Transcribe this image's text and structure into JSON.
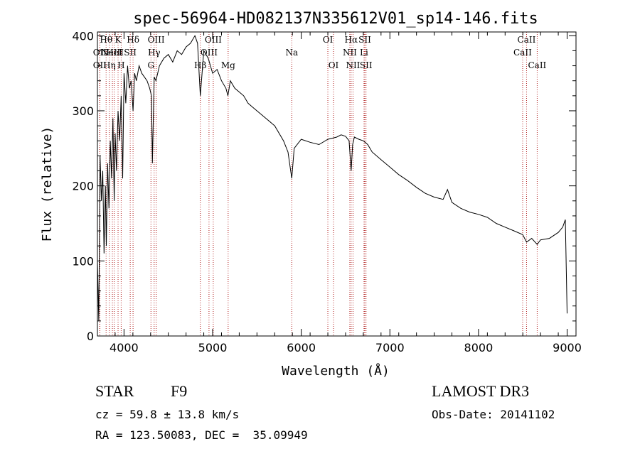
{
  "chart_data": {
    "type": "line",
    "title": "spec-56964-HD082137N335612V01_sp14-146.fits",
    "xlabel": "Wavelength (Å)",
    "ylabel": "Flux (relative)",
    "xlim": [
      3700,
      9100
    ],
    "ylim": [
      0,
      405
    ],
    "x_ticks": [
      4000,
      5000,
      6000,
      7000,
      8000,
      9000
    ],
    "y_ticks": [
      0,
      100,
      200,
      300,
      400
    ],
    "grid": false,
    "line_color": "#000000",
    "marker_line_color": "#b22222",
    "series": [
      {
        "x": [
          3700,
          3715,
          3730,
          3745,
          3760,
          3775,
          3790,
          3800,
          3815,
          3830,
          3845,
          3860,
          3875,
          3889,
          3900,
          3915,
          3933,
          3950,
          3968,
          3985,
          4000,
          4020,
          4040,
          4060,
          4080,
          4102,
          4120,
          4140,
          4170,
          4200,
          4230,
          4260,
          4290,
          4310,
          4320,
          4340,
          4360,
          4400,
          4450,
          4500,
          4550,
          4600,
          4650,
          4700,
          4750,
          4800,
          4830,
          4861,
          4900,
          4950,
          5000,
          5050,
          5100,
          5150,
          5172,
          5200,
          5250,
          5300,
          5350,
          5400,
          5450,
          5500,
          5600,
          5700,
          5800,
          5850,
          5893,
          5920,
          6000,
          6100,
          6200,
          6300,
          6400,
          6450,
          6500,
          6540,
          6563,
          6580,
          6600,
          6650,
          6700,
          6750,
          6800,
          6900,
          7000,
          7100,
          7200,
          7300,
          7400,
          7500,
          7600,
          7650,
          7700,
          7800,
          7900,
          8000,
          8100,
          8200,
          8300,
          8400,
          8498,
          8542,
          8600,
          8662,
          8700,
          8800,
          8900,
          8950,
          8980,
          9000
        ],
        "y": [
          100,
          20,
          240,
          180,
          220,
          110,
          200,
          120,
          230,
          170,
          260,
          210,
          290,
          180,
          270,
          220,
          300,
          260,
          320,
          210,
          350,
          310,
          360,
          330,
          340,
          300,
          350,
          340,
          360,
          350,
          345,
          340,
          330,
          320,
          230,
          345,
          340,
          360,
          370,
          375,
          365,
          380,
          375,
          385,
          390,
          400,
          390,
          320,
          380,
          370,
          350,
          355,
          340,
          330,
          320,
          340,
          330,
          325,
          320,
          310,
          305,
          300,
          290,
          280,
          260,
          245,
          210,
          250,
          262,
          258,
          255,
          262,
          265,
          268,
          266,
          260,
          220,
          255,
          265,
          262,
          260,
          255,
          245,
          235,
          225,
          215,
          207,
          198,
          190,
          185,
          182,
          195,
          178,
          170,
          165,
          162,
          158,
          150,
          145,
          140,
          135,
          125,
          130,
          122,
          128,
          130,
          138,
          145,
          155,
          30
        ]
      }
    ],
    "line_markers": [
      {
        "x": 3727,
        "label": "OII",
        "row": 1
      },
      {
        "x": 3727,
        "label": "OII",
        "row": 2
      },
      {
        "x": 3798,
        "label": "Hθ",
        "row": 0
      },
      {
        "x": 3835,
        "label": "Hη",
        "row": 2
      },
      {
        "x": 3869,
        "label": "NeIII",
        "row": 1
      },
      {
        "x": 3889,
        "label": "HeI",
        "row": 1
      },
      {
        "x": 3933,
        "label": "K",
        "row": 0
      },
      {
        "x": 3968,
        "label": "H",
        "row": 2
      },
      {
        "x": 4070,
        "label": "SII",
        "row": 1
      },
      {
        "x": 4102,
        "label": "Hδ",
        "row": 0
      },
      {
        "x": 4304,
        "label": "G",
        "row": 2
      },
      {
        "x": 4340,
        "label": "Hγ",
        "row": 1
      },
      {
        "x": 4363,
        "label": "OIII",
        "row": 0
      },
      {
        "x": 4861,
        "label": "Hβ",
        "row": 2
      },
      {
        "x": 4959,
        "label": "OIII",
        "row": 1
      },
      {
        "x": 5007,
        "label": "OIII",
        "row": 0
      },
      {
        "x": 5175,
        "label": "Mg",
        "row": 2
      },
      {
        "x": 5893,
        "label": "Na",
        "row": 1
      },
      {
        "x": 6300,
        "label": "OI",
        "row": 0
      },
      {
        "x": 6364,
        "label": "OI",
        "row": 2
      },
      {
        "x": 6548,
        "label": "NII",
        "row": 1
      },
      {
        "x": 6563,
        "label": "Hα",
        "row": 0
      },
      {
        "x": 6584,
        "label": "NII",
        "row": 2
      },
      {
        "x": 6708,
        "label": "Li",
        "row": 1
      },
      {
        "x": 6717,
        "label": "SII",
        "row": 0
      },
      {
        "x": 6731,
        "label": "SII",
        "row": 2
      },
      {
        "x": 8498,
        "label": "CaII",
        "row": 1
      },
      {
        "x": 8542,
        "label": "CaII",
        "row": 0
      },
      {
        "x": 8662,
        "label": "CaII",
        "row": 2
      }
    ]
  },
  "info": {
    "object_class": "STAR",
    "subclass": "F9",
    "survey": "LAMOST DR3",
    "redshift": "cz = 59.8 ± 13.8 km/s",
    "obs_date": "Obs-Date: 20141102",
    "coords": "RA = 123.50083, DEC =  35.09949"
  }
}
